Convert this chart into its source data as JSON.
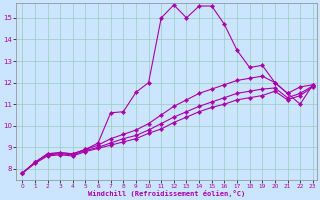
{
  "xlabel": "Windchill (Refroidissement éolien,°C)",
  "background_color": "#cce5ff",
  "grid_color": "#99ccbb",
  "line_color": "#aa00aa",
  "xlim_min": -0.5,
  "xlim_max": 23.3,
  "ylim_min": 7.5,
  "ylim_max": 15.7,
  "xticks": [
    0,
    1,
    2,
    3,
    4,
    5,
    6,
    7,
    8,
    9,
    10,
    11,
    12,
    13,
    14,
    15,
    16,
    17,
    18,
    19,
    20,
    21,
    22,
    23
  ],
  "yticks": [
    8,
    9,
    10,
    11,
    12,
    13,
    14,
    15
  ],
  "lines": [
    {
      "x": [
        0,
        1,
        2,
        3,
        4,
        5,
        6,
        7,
        8,
        9,
        10,
        11,
        12,
        13,
        14,
        15,
        16,
        17,
        18,
        19,
        20,
        21,
        22,
        23
      ],
      "y": [
        7.8,
        8.3,
        8.7,
        8.75,
        8.7,
        8.9,
        9.2,
        10.6,
        10.65,
        11.55,
        12.0,
        15.0,
        15.6,
        15.0,
        15.55,
        15.55,
        14.7,
        13.5,
        12.7,
        12.8,
        12.0,
        11.5,
        11.0,
        11.9
      ]
    },
    {
      "x": [
        0,
        1,
        2,
        3,
        4,
        5,
        6,
        7,
        8,
        9,
        10,
        11,
        12,
        13,
        14,
        15,
        16,
        17,
        18,
        19,
        20,
        21,
        22,
        23
      ],
      "y": [
        7.8,
        8.3,
        8.7,
        8.75,
        8.7,
        8.9,
        9.1,
        9.4,
        9.6,
        9.8,
        10.1,
        10.5,
        10.9,
        11.2,
        11.5,
        11.7,
        11.9,
        12.1,
        12.2,
        12.3,
        12.0,
        11.5,
        11.8,
        11.9
      ]
    },
    {
      "x": [
        0,
        1,
        2,
        3,
        4,
        5,
        6,
        7,
        8,
        9,
        10,
        11,
        12,
        13,
        14,
        15,
        16,
        17,
        18,
        19,
        20,
        21,
        22,
        23
      ],
      "y": [
        7.8,
        8.3,
        8.65,
        8.7,
        8.65,
        8.85,
        9.0,
        9.2,
        9.4,
        9.55,
        9.8,
        10.1,
        10.4,
        10.65,
        10.9,
        11.1,
        11.3,
        11.5,
        11.6,
        11.7,
        11.75,
        11.3,
        11.5,
        11.85
      ]
    },
    {
      "x": [
        0,
        1,
        2,
        3,
        4,
        5,
        6,
        7,
        8,
        9,
        10,
        11,
        12,
        13,
        14,
        15,
        16,
        17,
        18,
        19,
        20,
        21,
        22,
        23
      ],
      "y": [
        7.8,
        8.25,
        8.6,
        8.65,
        8.6,
        8.8,
        8.95,
        9.1,
        9.25,
        9.4,
        9.65,
        9.85,
        10.15,
        10.4,
        10.65,
        10.85,
        11.0,
        11.2,
        11.3,
        11.4,
        11.6,
        11.2,
        11.4,
        11.8
      ]
    }
  ]
}
